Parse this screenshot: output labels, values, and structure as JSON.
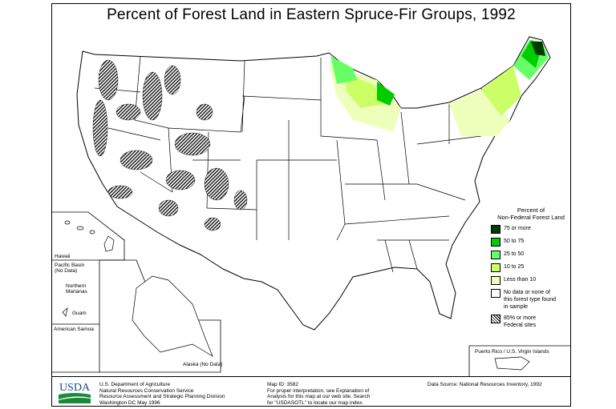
{
  "title": "Percent of Forest Land in Eastern Spruce-Fir Groups, 1992",
  "legend": {
    "heading_line1": "Percent of",
    "heading_line2": "Non-Federal Forest Land",
    "items": [
      {
        "label": "75 or more",
        "color": "#003a00"
      },
      {
        "label": "50 to 75",
        "color": "#00cc00"
      },
      {
        "label": "25 to 50",
        "color": "#66ff66"
      },
      {
        "label": "10 to 25",
        "color": "#ccff66"
      },
      {
        "label": "Less than 10",
        "color": "#eeffbb"
      },
      {
        "label": "No data or none of this forest type found in sample",
        "color": "#ffffff"
      },
      {
        "label": "85% or more Federal sites",
        "pattern": "diagonal-hatch"
      }
    ]
  },
  "insets": {
    "hawaii": "Hawaii",
    "pacific_basin": "Pacific Basin",
    "pacific_no_data": "(No Data)",
    "northern_marianas_1": "Northern",
    "northern_marianas_2": "Marianas",
    "guam": "Guam",
    "american_samoa": "American Samoa",
    "alaska": "Alaska (No Data)",
    "puerto_rico": "Puerto Rico / U.S. Virgin Islands"
  },
  "footer": {
    "logo_text": "USDA",
    "agency": [
      "U.S. Department of Agriculture",
      "Natural Resources Conservation Service",
      "Resource Assessment and Strategic Planning Division",
      "Washington DC   May 1996"
    ],
    "map_id": "Map ID: 3582",
    "interpretation": [
      "For proper interpretation, see Explanation of",
      "Analysis for this map at our web site. Search",
      "for \"USDASOTL\" to locate our map index."
    ],
    "data_source": "Data Source:  National Resources Inventory, 1992"
  }
}
